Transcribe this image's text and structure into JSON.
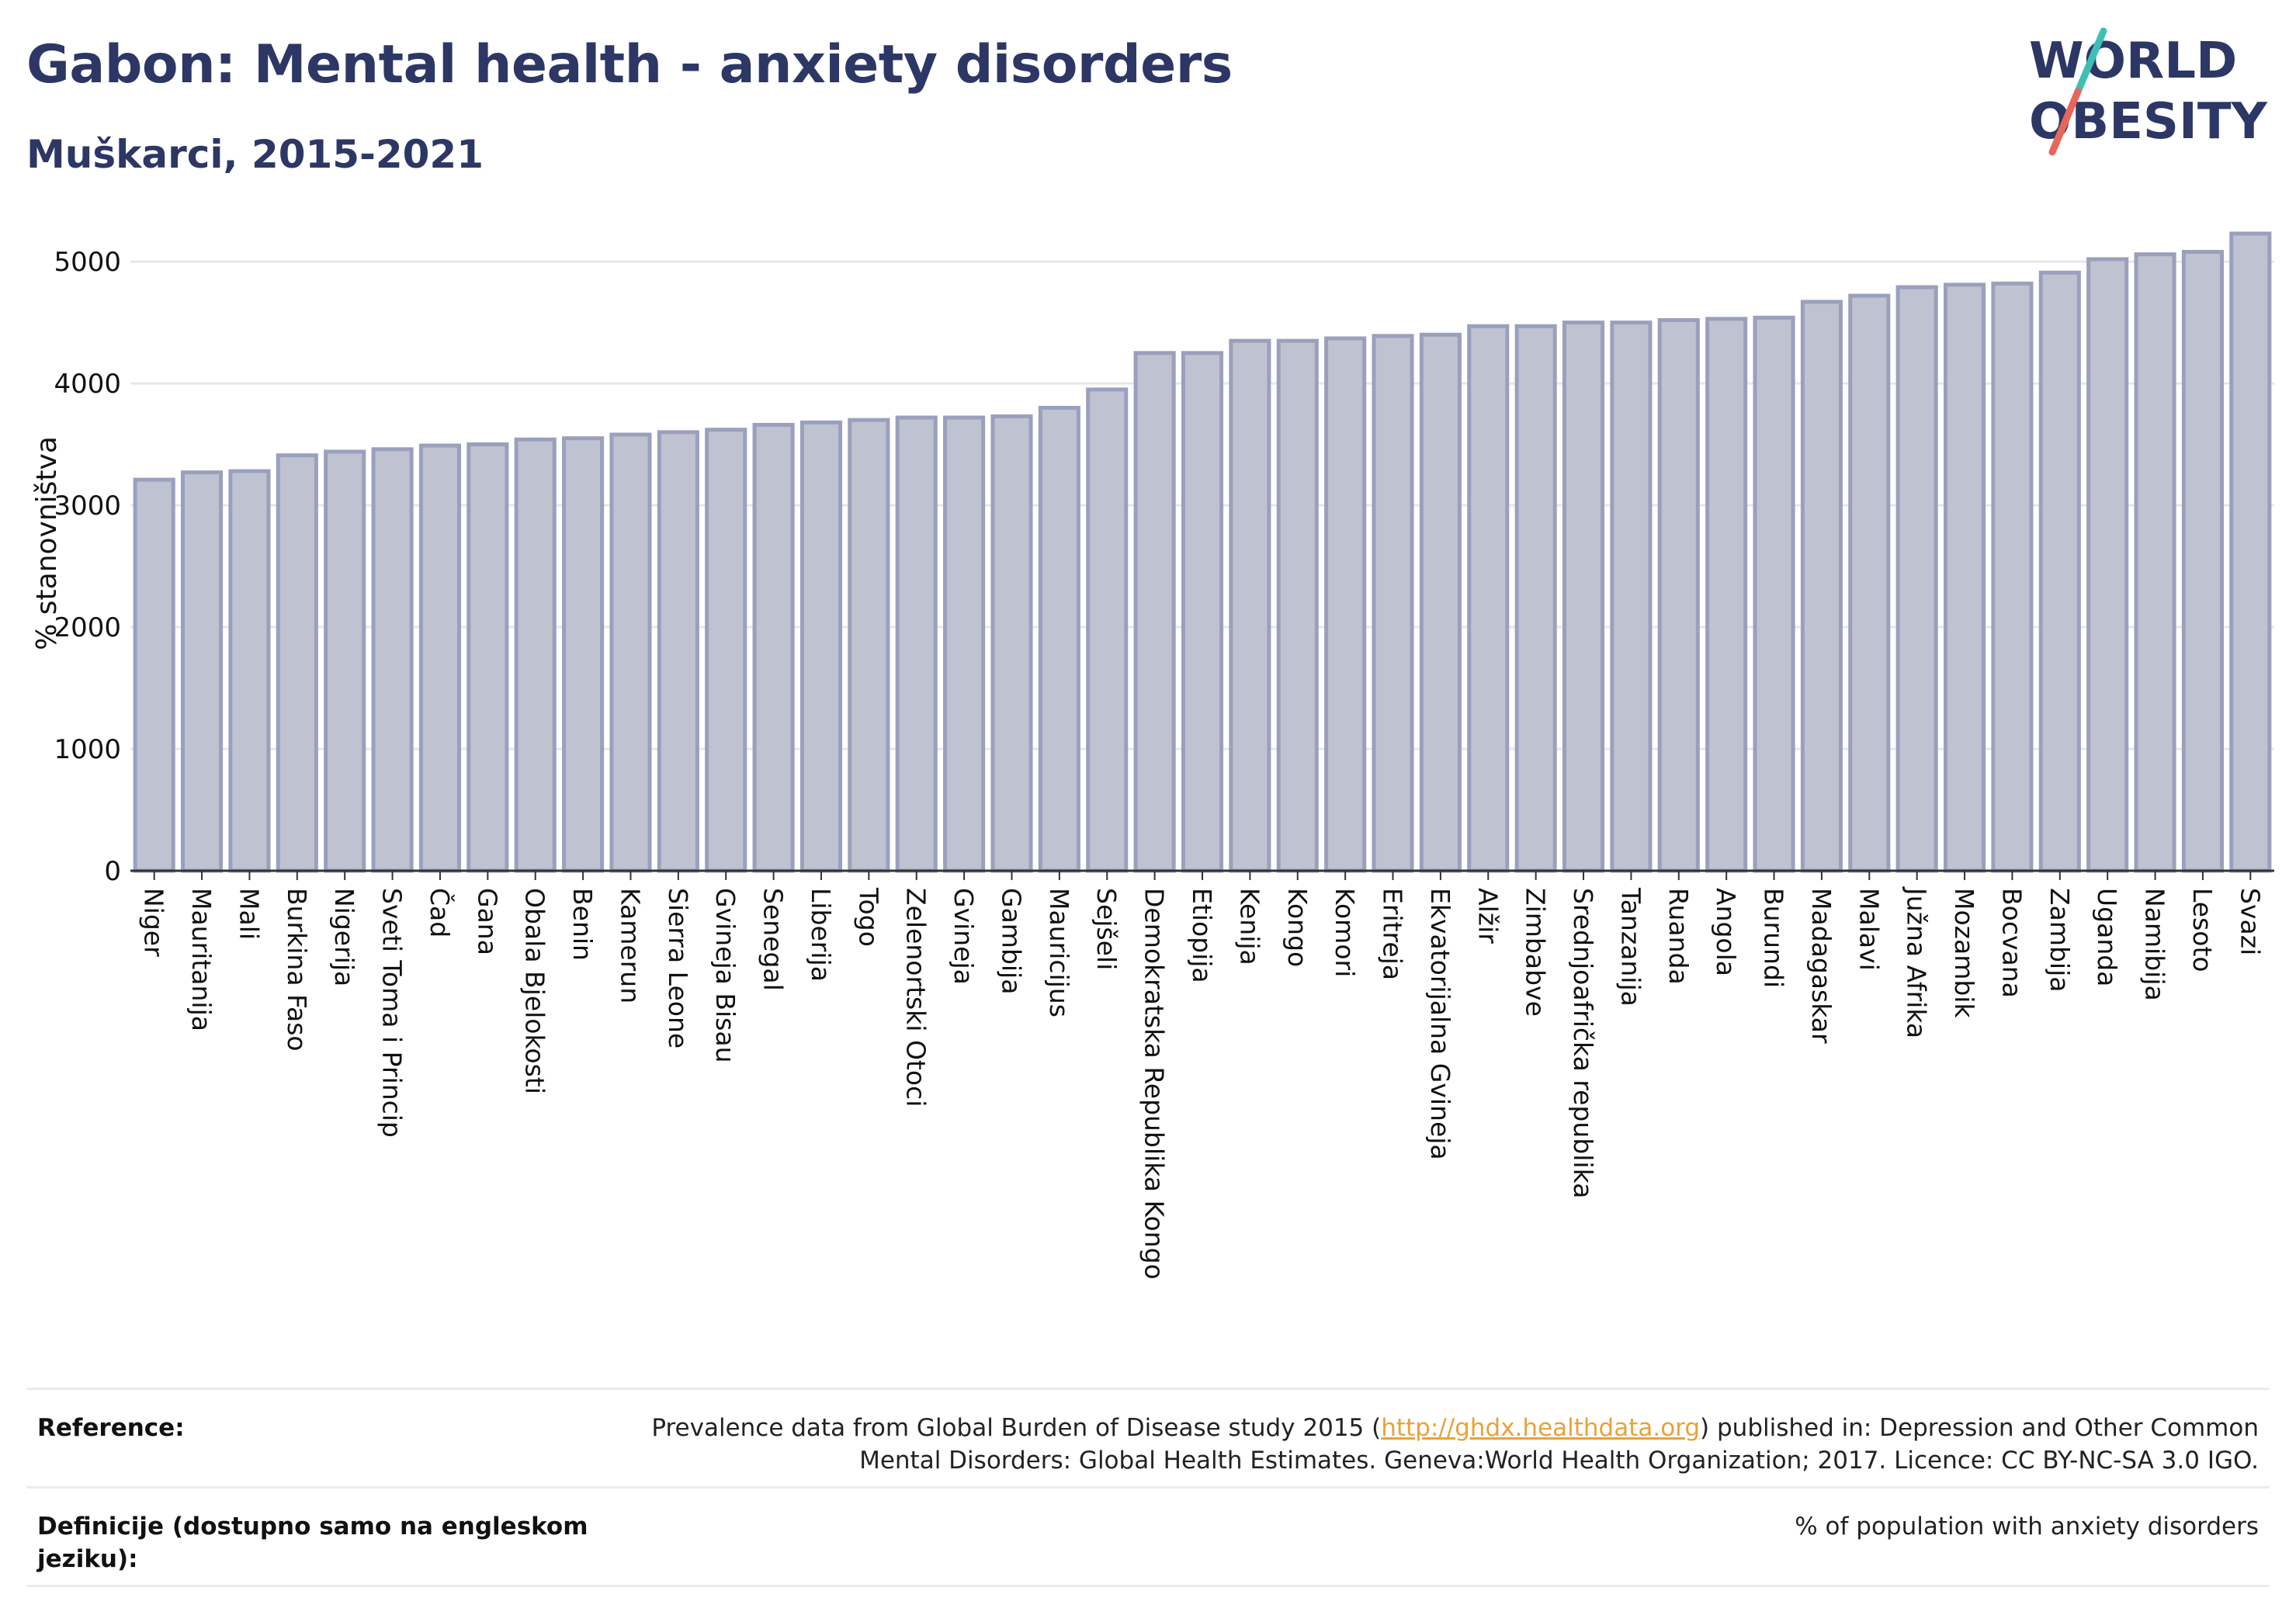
{
  "header": {
    "title": "Gabon: Mental health - anxiety disorders",
    "subtitle": "Muškarci, 2015-2021",
    "logo_line1": "WORLD",
    "logo_line2": "OBESITY"
  },
  "colors": {
    "title": "#2d3765",
    "bar_fill": "#bfc2d0",
    "bar_stroke": "#9aa0bc",
    "grid": "#e6e6ec",
    "logo_slash_top": "#3fbfb4",
    "logo_slash_bottom": "#e8665a"
  },
  "chart_data": {
    "type": "bar",
    "ylabel": "% stanovništva",
    "xlabel": "",
    "ylim": [
      0,
      5300
    ],
    "yticks": [
      0,
      1000,
      2000,
      3000,
      4000,
      5000
    ],
    "grid": true,
    "categories": [
      "Niger",
      "Mauritanija",
      "Mali",
      "Burkina Faso",
      "Nigerija",
      "Sveti Toma i Princip",
      "Čad",
      "Gana",
      "Obala Bjelokosti",
      "Benin",
      "Kamerun",
      "Sierra Leone",
      "Gvineja Bisau",
      "Senegal",
      "Liberija",
      "Togo",
      "Zelenortski Otoci",
      "Gvineja",
      "Gambija",
      "Mauricijus",
      "Sejšeli",
      "Demokratska Republika Kongo",
      "Etiopija",
      "Kenija",
      "Kongo",
      "Komori",
      "Eritreja",
      "Ekvatorijalna Gvineja",
      "Alžir",
      "Zimbabve",
      "Srednjoafrička republika",
      "Tanzanija",
      "Ruanda",
      "Angola",
      "Burundi",
      "Madagaskar",
      "Malavi",
      "Južna Afrika",
      "Mozambik",
      "Bocvana",
      "Zambija",
      "Uganda",
      "Namibija",
      "Lesoto",
      "Svazi"
    ],
    "values": [
      3210,
      3270,
      3280,
      3410,
      3440,
      3460,
      3490,
      3500,
      3540,
      3550,
      3580,
      3600,
      3620,
      3660,
      3680,
      3700,
      3720,
      3720,
      3730,
      3800,
      3950,
      4250,
      4250,
      4350,
      4350,
      4370,
      4390,
      4400,
      4470,
      4470,
      4500,
      4500,
      4520,
      4530,
      4540,
      4670,
      4720,
      4790,
      4810,
      4820,
      4910,
      5020,
      5060,
      5080,
      5230
    ]
  },
  "footer": {
    "reference_label": "Reference:",
    "reference_pre": "Prevalence data from Global Burden of Disease study 2015 (",
    "reference_link": "http://ghdx.healthdata.org",
    "reference_post": ") published in: Depression and Other Common",
    "reference_line2": "Mental Disorders: Global Health Estimates. Geneva:World Health Organization; 2017. Licence: CC BY-NC-SA 3.0 IGO.",
    "definition_label": "Definicije (dostupno samo na engleskom jeziku):",
    "definition_value": "% of population with anxiety disorders"
  }
}
